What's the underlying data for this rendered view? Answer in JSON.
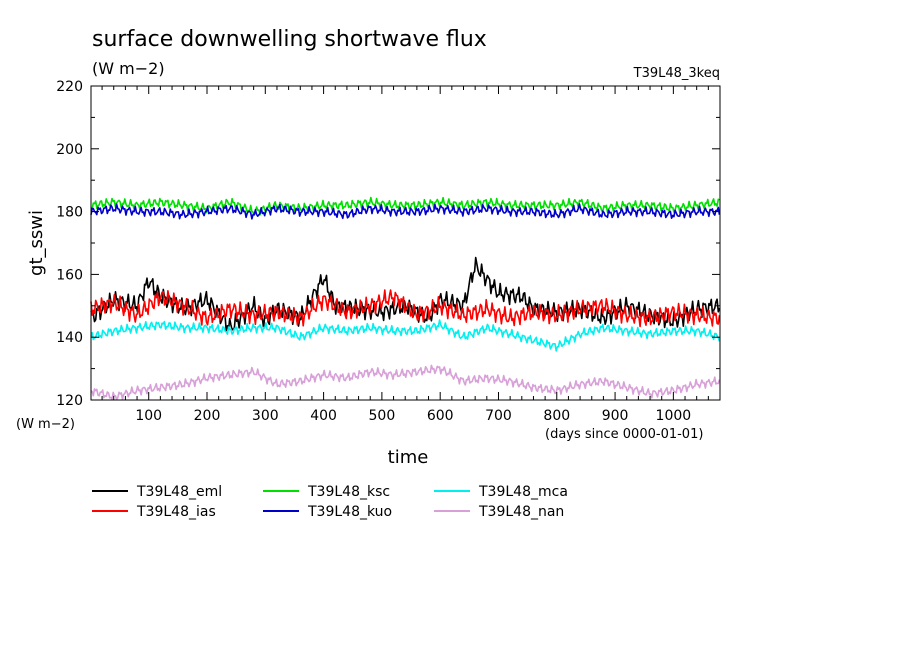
{
  "chart_data": {
    "type": "line",
    "title": "surface downwelling shortwave flux",
    "subtitle": "(W m−2)",
    "experiment": "T39L48_3keq",
    "xlabel": "time",
    "x_unit": "(days since 0000-01-01)",
    "ylabel": "gt_sswi",
    "y_unit": "(W m−2)",
    "xlim": [
      1,
      1080
    ],
    "ylim": [
      120,
      220
    ],
    "x_ticks": [
      100,
      200,
      300,
      400,
      500,
      600,
      700,
      800,
      900,
      1000
    ],
    "y_ticks": [
      120,
      140,
      160,
      180,
      200,
      220
    ],
    "grid": false,
    "legend_position": "bottom",
    "series": [
      {
        "name": "T39L48_eml",
        "color": "#000000",
        "x": [
          1,
          40,
          80,
          100,
          120,
          160,
          200,
          240,
          280,
          300,
          320,
          360,
          400,
          420,
          460,
          500,
          540,
          580,
          600,
          640,
          660,
          700,
          740,
          760,
          800,
          840,
          880,
          920,
          960,
          1000,
          1040,
          1080
        ],
        "y": [
          146,
          152,
          150,
          158,
          153,
          149,
          152,
          143,
          150,
          145,
          149,
          146,
          159,
          150,
          149,
          148,
          150,
          146,
          152,
          150,
          163,
          154,
          153,
          149,
          148,
          149,
          146,
          150,
          147,
          145,
          149,
          150
        ]
      },
      {
        "name": "T39L48_ias",
        "color": "#ff0000",
        "x": [
          1,
          40,
          80,
          120,
          160,
          200,
          240,
          280,
          320,
          360,
          400,
          440,
          480,
          520,
          560,
          600,
          640,
          680,
          720,
          760,
          800,
          840,
          880,
          920,
          960,
          1000,
          1040,
          1080
        ],
        "y": [
          149,
          151,
          147,
          153,
          150,
          146,
          149,
          147,
          148,
          146,
          152,
          148,
          150,
          153,
          147,
          150,
          147,
          149,
          146,
          148,
          147,
          149,
          150,
          147,
          146,
          148,
          147,
          146
        ]
      },
      {
        "name": "T39L48_ksc",
        "color": "#00e000",
        "x": [
          1,
          40,
          80,
          120,
          160,
          200,
          240,
          280,
          320,
          360,
          400,
          440,
          480,
          520,
          560,
          600,
          640,
          680,
          720,
          760,
          800,
          840,
          880,
          920,
          960,
          1000,
          1040,
          1080
        ],
        "y": [
          182,
          183,
          182,
          183,
          182,
          181,
          183,
          180,
          182,
          181,
          182,
          182,
          183,
          182,
          182,
          183,
          182,
          183,
          182,
          182,
          182,
          183,
          181,
          182,
          182,
          181,
          182,
          183
        ]
      },
      {
        "name": "T39L48_kuo",
        "color": "#0000cc",
        "x": [
          1,
          40,
          80,
          120,
          160,
          200,
          240,
          280,
          320,
          360,
          400,
          440,
          480,
          520,
          560,
          600,
          640,
          680,
          720,
          760,
          800,
          840,
          880,
          920,
          960,
          1000,
          1040,
          1080
        ],
        "y": [
          180,
          181,
          180,
          180,
          179,
          180,
          181,
          179,
          181,
          180,
          180,
          179,
          181,
          180,
          180,
          181,
          180,
          181,
          180,
          180,
          179,
          181,
          179,
          180,
          180,
          179,
          180,
          180
        ]
      },
      {
        "name": "T39L48_mca",
        "color": "#00f0f0",
        "x": [
          1,
          40,
          80,
          120,
          160,
          200,
          240,
          280,
          320,
          360,
          400,
          440,
          480,
          520,
          560,
          600,
          640,
          680,
          720,
          760,
          800,
          840,
          880,
          920,
          960,
          1000,
          1040,
          1080
        ],
        "y": [
          140,
          142,
          143,
          144,
          143,
          143,
          142,
          143,
          143,
          140,
          143,
          142,
          143,
          142,
          142,
          144,
          140,
          143,
          141,
          139,
          137,
          141,
          143,
          142,
          141,
          142,
          142,
          140
        ]
      },
      {
        "name": "T39L48_nan",
        "color": "#d8a0d8",
        "x": [
          1,
          40,
          80,
          120,
          160,
          200,
          240,
          280,
          320,
          360,
          400,
          440,
          480,
          520,
          560,
          600,
          640,
          680,
          720,
          760,
          800,
          840,
          880,
          920,
          960,
          1000,
          1040,
          1080
        ],
        "y": [
          123,
          121,
          123,
          124,
          125,
          127,
          128,
          129,
          125,
          126,
          128,
          127,
          129,
          128,
          129,
          130,
          126,
          127,
          126,
          124,
          123,
          125,
          126,
          124,
          122,
          123,
          125,
          126
        ]
      }
    ]
  }
}
